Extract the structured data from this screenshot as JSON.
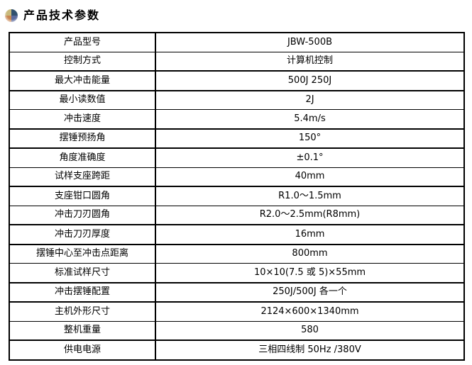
{
  "header": {
    "title": "产品技术参数"
  },
  "icon": {
    "name": "sphere-quadrant-icon",
    "colors": {
      "top_left": "#c9ba7c",
      "top_right": "#30506e",
      "bottom_left": "#c8854f",
      "bottom_right": "#5b6b9f"
    }
  },
  "table": {
    "rows": [
      {
        "label": "产品型号",
        "value": "JBW-500B",
        "sep": "thin"
      },
      {
        "label": "控制方式",
        "value": "计算机控制",
        "sep": "thick"
      },
      {
        "label": "最大冲击能量",
        "value": "500J 250J",
        "sep": "thick"
      },
      {
        "label": "最小读数值",
        "value": "2J",
        "sep": "thin"
      },
      {
        "label": "冲击速度",
        "value": "5.4m/s",
        "sep": "thick"
      },
      {
        "label": "摆锤预扬角",
        "value": "150°",
        "sep": "thick"
      },
      {
        "label": "角度准确度",
        "value": "±0.1°",
        "sep": "thin"
      },
      {
        "label": "试样支座跨距",
        "value": "40mm",
        "sep": "thick"
      },
      {
        "label": "支座钳口圆角",
        "value": "R1.0～1.5mm",
        "sep": "thin"
      },
      {
        "label": "冲击刀刃圆角",
        "value": "R2.0～2.5mm(R8mm)",
        "sep": "thick"
      },
      {
        "label": "冲击刀刃厚度",
        "value": "16mm",
        "sep": "thick"
      },
      {
        "label": "摆锤中心至冲击点距离",
        "value": "800mm",
        "sep": "thin"
      },
      {
        "label": "标准试样尺寸",
        "value": "10×10(7.5 或 5)×55mm",
        "sep": "thick"
      },
      {
        "label": "冲击摆锤配置",
        "value": "250J/500J 各一个",
        "sep": "thick"
      },
      {
        "label": "主机外形尺寸",
        "value": "2124×600×1340mm",
        "sep": "thin"
      },
      {
        "label": "整机重量",
        "value": "580",
        "sep": "thick"
      },
      {
        "label": "供电电源",
        "value": "三相四线制 50Hz /380V",
        "sep": "none"
      }
    ]
  }
}
